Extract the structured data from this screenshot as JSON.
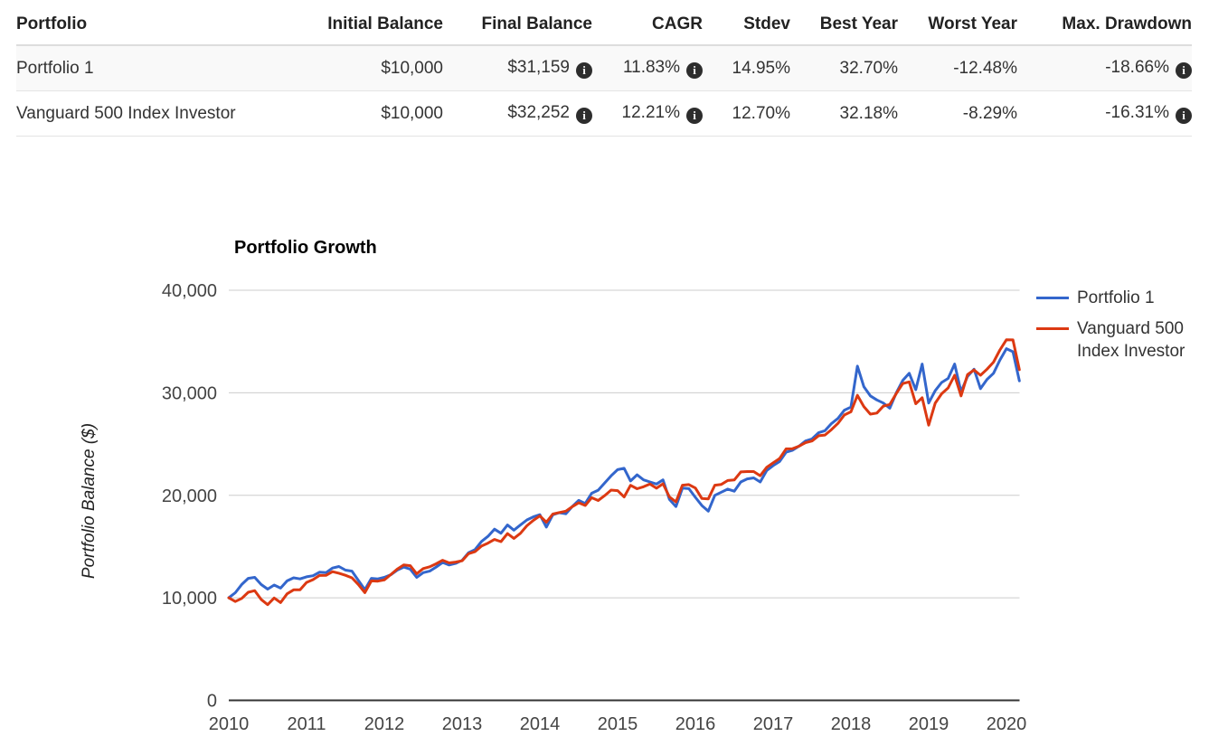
{
  "table": {
    "headers": [
      "Portfolio",
      "Initial Balance",
      "Final Balance",
      "CAGR",
      "Stdev",
      "Best Year",
      "Worst Year",
      "Max. Drawdown"
    ],
    "info_icon": "i",
    "rows": [
      {
        "name": "Portfolio 1",
        "initial_balance": "$10,000",
        "final_balance": "$31,159",
        "cagr": "11.83%",
        "stdev": "14.95%",
        "best_year": "32.70%",
        "worst_year": "-12.48%",
        "max_drawdown": "-18.66%"
      },
      {
        "name": "Vanguard 500 Index Investor",
        "initial_balance": "$10,000",
        "final_balance": "$32,252",
        "cagr": "12.21%",
        "stdev": "12.70%",
        "best_year": "32.18%",
        "worst_year": "-8.29%",
        "max_drawdown": "-16.31%"
      }
    ]
  },
  "chart_data": {
    "type": "line",
    "title": "Portfolio Growth",
    "ylabel": "Portfolio Balance ($)",
    "xlabel": "",
    "grid": "horizontal",
    "legend_position": "right",
    "ylim": [
      0,
      40000
    ],
    "x_start": "2010-01",
    "x_end": "2020-02",
    "points_per_year": 12,
    "x_tick_labels": [
      "2010",
      "2011",
      "2012",
      "2013",
      "2014",
      "2015",
      "2016",
      "2017",
      "2018",
      "2019",
      "2020"
    ],
    "y_ticks": [
      {
        "v": 0,
        "label": "0"
      },
      {
        "v": 10000,
        "label": "10,000"
      },
      {
        "v": 20000,
        "label": "20,000"
      },
      {
        "v": 30000,
        "label": "30,000"
      },
      {
        "v": 40000,
        "label": "40,000"
      }
    ],
    "colors": {
      "portfolio1": "#3366cc",
      "vanguard500": "#dc3912",
      "gridline": "#cccccc",
      "axis": "#333333",
      "tick_text": "#444444"
    },
    "legend": [
      {
        "label": "Portfolio 1",
        "color": "#3366cc"
      },
      {
        "label": "Vanguard 500 Index Investor",
        "color": "#dc3912"
      }
    ],
    "series": [
      {
        "name": "Portfolio 1",
        "color": "#3366cc",
        "values": [
          10000,
          10500,
          11300,
          11900,
          12000,
          11300,
          10850,
          11250,
          10950,
          11650,
          11950,
          11850,
          12050,
          12150,
          12500,
          12450,
          12900,
          13050,
          12700,
          12600,
          11700,
          10800,
          11900,
          11850,
          12000,
          12250,
          12700,
          13000,
          12800,
          12000,
          12450,
          12600,
          13000,
          13450,
          13200,
          13350,
          13650,
          14400,
          14700,
          15500,
          16000,
          16700,
          16300,
          17100,
          16600,
          17100,
          17600,
          17900,
          18110,
          16900,
          18100,
          18300,
          18200,
          18900,
          19500,
          19200,
          20200,
          20500,
          21200,
          21900,
          22500,
          22630,
          21400,
          22000,
          21500,
          21300,
          21100,
          21500,
          19600,
          18900,
          20700,
          20650,
          19800,
          19000,
          18450,
          20000,
          20300,
          20600,
          20400,
          21300,
          21600,
          21700,
          21300,
          22400,
          22900,
          23300,
          24200,
          24400,
          24800,
          25300,
          25500,
          26100,
          26300,
          27000,
          27500,
          28300,
          28600,
          32600,
          30600,
          29700,
          29300,
          29000,
          28500,
          30000,
          31200,
          31900,
          30300,
          32800,
          29000,
          30200,
          31000,
          31400,
          32800,
          30100,
          31600,
          32300,
          30400,
          31300,
          31900,
          33200,
          34300,
          34000,
          31159
        ]
      },
      {
        "name": "Vanguard 500 Index Investor",
        "color": "#dc3912",
        "values": [
          10000,
          9640,
          9939,
          10536,
          10702,
          9846,
          9333,
          9987,
          9536,
          10387,
          10782,
          10785,
          11505,
          11778,
          12182,
          12186,
          12547,
          12405,
          12198,
          11950,
          11301,
          10506,
          11654,
          11628,
          11747,
          12271,
          12801,
          13213,
          13129,
          12341,
          12849,
          13026,
          13319,
          13661,
          13407,
          13484,
          13606,
          14310,
          14503,
          15046,
          15335,
          15692,
          15481,
          16267,
          15795,
          16289,
          17036,
          17554,
          17997,
          17374,
          18167,
          18318,
          18452,
          18884,
          19273,
          19006,
          19764,
          19495,
          19970,
          20505,
          20452,
          19837,
          20974,
          20641,
          20837,
          21102,
          20692,
          21123,
          19848,
          19354,
          20985,
          21046,
          20712,
          19685,
          19656,
          20987,
          21066,
          21440,
          21493,
          22283,
          22312,
          22313,
          21908,
          22717,
          23161,
          23596,
          24527,
          24550,
          24798,
          25142,
          25294,
          25810,
          25880,
          26407,
          27018,
          27840,
          28143,
          29750,
          28653,
          27918,
          28018,
          28688,
          28858,
          29925,
          30894,
          31065,
          28930,
          29510,
          26837,
          28982,
          29905,
          30478,
          31707,
          29694,
          31776,
          32226,
          31712,
          32300,
          32990,
          34182,
          35174,
          35160,
          32252
        ]
      }
    ]
  }
}
